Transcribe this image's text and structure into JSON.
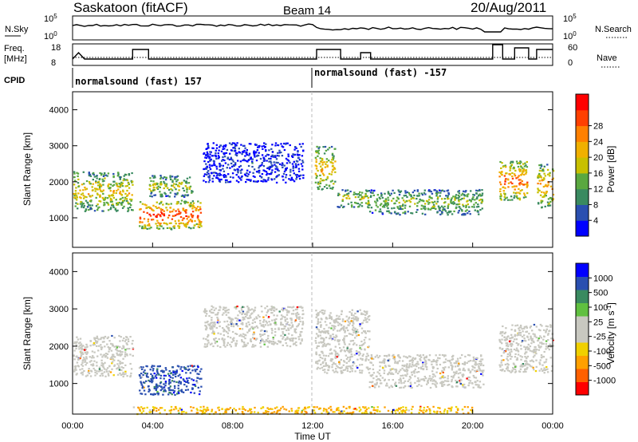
{
  "header": {
    "station": "Saskatoon (fitACF)",
    "beam": "Beam 14",
    "date": "20/Aug/2011"
  },
  "noise_panel": {
    "left_label": "N.Sky",
    "left_ticks": [
      "10^5",
      "10^0"
    ],
    "right_ticks": [
      "10^5",
      "10^0"
    ],
    "right_label": "N.Search"
  },
  "freq_panel": {
    "left_label_1": "Freq.",
    "left_label_2": "[MHz]",
    "left_ticks": [
      "18",
      "8"
    ],
    "right_ticks": [
      "60",
      "0"
    ],
    "right_label": "Nave"
  },
  "cpid": {
    "label": "CPID",
    "segments": [
      {
        "start_hour": 0.0,
        "label": "normalsound (fast) 157"
      },
      {
        "start_hour": 12.0,
        "label": "normalsound (fast) -157"
      }
    ]
  },
  "colors": {
    "power_scale": [
      "#0000ff",
      "#2a4fb0",
      "#3a8a60",
      "#5aa840",
      "#c8c000",
      "#f0b000",
      "#ff8000",
      "#ff4000",
      "#ff0000"
    ],
    "velocity_scale": [
      "#ff0000",
      "#ff6000",
      "#ffa000",
      "#f0d000",
      "#c8c8c0",
      "#c8c8c0",
      "#60c040",
      "#3a8a60",
      "#2a4fb0",
      "#0000ff"
    ]
  },
  "chart_data": [
    {
      "type": "heatmap",
      "name": "power",
      "ylabel": "Slant Range [km]",
      "xlim_hours": [
        0,
        24
      ],
      "ylim_km": [
        180,
        4500
      ],
      "y_ticks": [
        "1000",
        "2000",
        "3000",
        "4000"
      ],
      "colorbar_label": "Power [dB]",
      "colorbar_ticks": [
        "4",
        "8",
        "12",
        "16",
        "20",
        "24",
        "28"
      ],
      "echo_regions": [
        {
          "start_hour": 0.0,
          "end_hour": 3.0,
          "range_low_km": 1200,
          "range_high_km": 2300,
          "level": 0.6
        },
        {
          "start_hour": 3.3,
          "end_hour": 6.4,
          "range_low_km": 700,
          "range_high_km": 1500,
          "level": 0.9
        },
        {
          "start_hour": 3.8,
          "end_hour": 6.0,
          "range_low_km": 1600,
          "range_high_km": 2200,
          "level": 0.5
        },
        {
          "start_hour": 6.5,
          "end_hour": 11.5,
          "range_low_km": 2000,
          "range_high_km": 3100,
          "level": 0.1
        },
        {
          "start_hour": 12.1,
          "end_hour": 13.1,
          "range_low_km": 1800,
          "range_high_km": 3000,
          "level": 0.65
        },
        {
          "start_hour": 13.2,
          "end_hour": 14.8,
          "range_low_km": 1300,
          "range_high_km": 1800,
          "level": 0.55
        },
        {
          "start_hour": 14.8,
          "end_hour": 20.5,
          "range_low_km": 1100,
          "range_high_km": 1800,
          "level": 0.45
        },
        {
          "start_hour": 21.3,
          "end_hour": 22.7,
          "range_low_km": 1500,
          "range_high_km": 2600,
          "level": 0.8
        },
        {
          "start_hour": 23.2,
          "end_hour": 24.0,
          "range_low_km": 1300,
          "range_high_km": 2500,
          "level": 0.7
        }
      ]
    },
    {
      "type": "heatmap",
      "name": "velocity",
      "ylabel": "Slant Range [km]",
      "xlabel": "Time UT",
      "xlim_hours": [
        0,
        24
      ],
      "ylim_km": [
        180,
        4500
      ],
      "y_ticks": [
        "1000",
        "2000",
        "3000",
        "4000"
      ],
      "x_ticks": [
        "00:00",
        "04:00",
        "08:00",
        "12:00",
        "16:00",
        "20:00",
        "00:00"
      ],
      "colorbar_label": "Velocity [m s",
      "colorbar_label_sup": "-1",
      "colorbar_label_end": "]",
      "colorbar_ticks": [
        "1000",
        "500",
        "100",
        "25",
        "-25",
        "-100",
        "-500",
        "-1000"
      ],
      "echo_regions": [
        {
          "start_hour": 0.0,
          "end_hour": 3.0,
          "range_low_km": 1200,
          "range_high_km": 2300,
          "level": 0.5
        },
        {
          "start_hour": 3.3,
          "end_hour": 6.4,
          "range_low_km": 700,
          "range_high_km": 1500,
          "level": 0.85
        },
        {
          "start_hour": 6.5,
          "end_hour": 11.5,
          "range_low_km": 2000,
          "range_high_km": 3100,
          "level": 0.5
        },
        {
          "start_hour": 12.1,
          "end_hour": 14.8,
          "range_low_km": 1300,
          "range_high_km": 3000,
          "level": 0.5
        },
        {
          "start_hour": 14.8,
          "end_hour": 20.5,
          "range_low_km": 900,
          "range_high_km": 1800,
          "level": 0.5
        },
        {
          "start_hour": 21.3,
          "end_hour": 24.0,
          "range_low_km": 1300,
          "range_high_km": 2600,
          "level": 0.5
        },
        {
          "start_hour": 3.0,
          "end_hour": 20.0,
          "range_low_km": 200,
          "range_high_km": 400,
          "level": 0.3
        }
      ]
    }
  ]
}
